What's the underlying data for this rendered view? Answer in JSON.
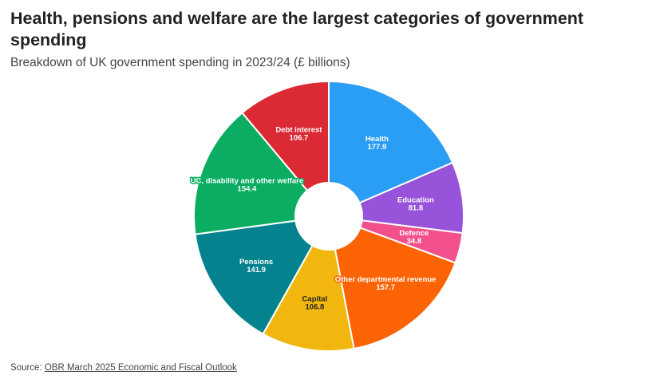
{
  "header": {
    "title": "Health, pensions and welfare are the largest categories of government spending",
    "subtitle": "Breakdown of UK government spending in 2023/24 (£ billions)"
  },
  "footer": {
    "source_prefix": "Source: ",
    "source_link_text": "OBR March 2025 Economic and Fiscal Outlook"
  },
  "chart_data": {
    "type": "pie",
    "variant": "donut",
    "title": "Health, pensions and welfare are the largest categories of government spending",
    "subtitle": "Breakdown of UK government spending in 2023/24 (£ billions)",
    "unit": "£ billions",
    "start": "12 o'clock",
    "direction": "clockwise",
    "slices": [
      {
        "label": "Health",
        "value": 177.9,
        "value_label": "177.9",
        "color": "#2a9df4",
        "text_color": "#ffffff",
        "outlined": false
      },
      {
        "label": "Education",
        "value": 81.8,
        "value_label": "81.8",
        "color": "#9753d9",
        "text_color": "#ffffff",
        "outlined": false
      },
      {
        "label": "Defence",
        "value": 34.8,
        "value_label": "34.8",
        "color": "#f2508a",
        "text_color": "#ffffff",
        "outlined": true
      },
      {
        "label": "Other departmental revenue",
        "value": 157.7,
        "value_label": "157.7",
        "color": "#fb6304",
        "text_color": "#ffffff",
        "outlined": true
      },
      {
        "label": "Capital",
        "value": 106.8,
        "value_label": "106.8",
        "color": "#f1b70f",
        "text_color": "#222222",
        "outlined": false
      },
      {
        "label": "Pensions",
        "value": 141.9,
        "value_label": "141.9",
        "color": "#04838e",
        "text_color": "#ffffff",
        "outlined": false
      },
      {
        "label": "UC, disability and other welfare",
        "value": 154.4,
        "value_label": "154.4",
        "color": "#0aad62",
        "text_color": "#ffffff",
        "outlined": true
      },
      {
        "label": "Debt interest",
        "value": 106.7,
        "value_label": "106.7",
        "color": "#dc2a35",
        "text_color": "#ffffff",
        "outlined": false
      }
    ]
  }
}
